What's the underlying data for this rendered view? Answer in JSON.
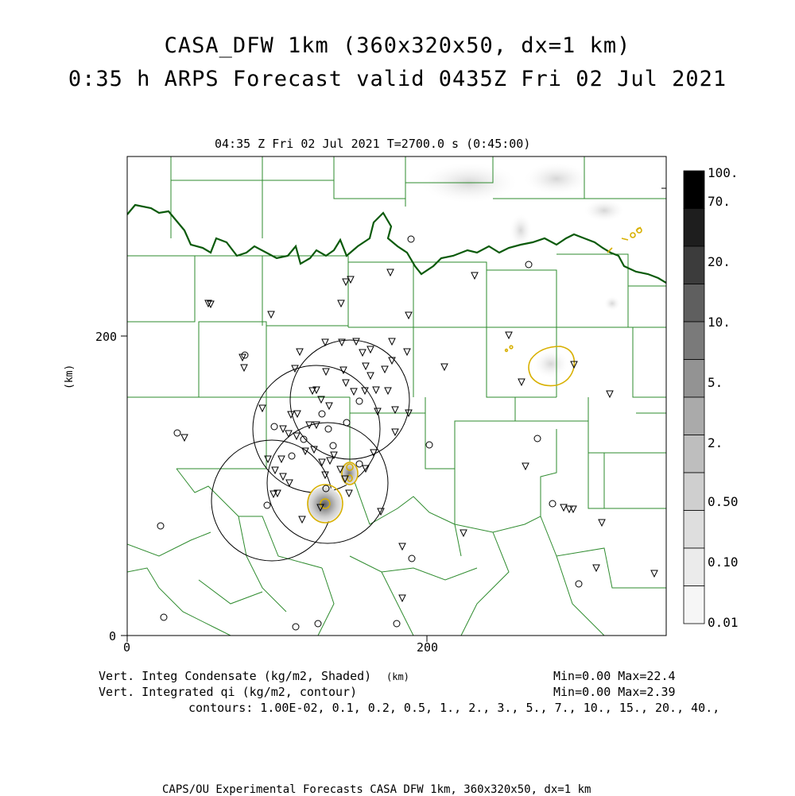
{
  "header": {
    "title_line1": "CASA_DFW 1km (360x320x50, dx=1 km)",
    "title_line2": "0:35 h ARPS Forecast valid 0435Z Fri 02 Jul 2021",
    "plot_subtitle": "04:35 Z Fri 02 Jul 2021     T=2700.0 s (0:45:00)"
  },
  "axes": {
    "y_label": "(km)",
    "x_unit_label": "(km)",
    "y_ticks": [
      "200",
      "0"
    ],
    "x_ticks": [
      "0",
      "200"
    ]
  },
  "colorbar": {
    "labels": [
      "100.",
      "70.",
      "20.",
      "10.",
      "5.",
      "2.",
      "0.50",
      "0.10",
      "0.01"
    ],
    "colors": [
      "#000000",
      "#1e1e1e",
      "#3c3c3c",
      "#5f5f5f",
      "#7a7a7a",
      "#939393",
      "#aaaaaa",
      "#bebebe",
      "#cfcfcf",
      "#dedede",
      "#ebebeb",
      "#f6f6f6"
    ]
  },
  "footer": {
    "field1": "Vert. Integ Condensate (kg/m2, Shaded)",
    "field1_stats": "Min=0.00 Max=22.4",
    "field2": "Vert. Integrated qi (kg/m2, contour)",
    "field2_stats": "Min=0.00 Max=2.39",
    "contours": "contours: 1.00E-02, 0.1, 0.2, 0.5, 1., 2., 3., 5., 7., 10., 15., 20., 40.,",
    "credit": "CAPS/OU Experimental Forecasts  CASA DFW 1km, 360x320x50, dx=1 km"
  },
  "colors": {
    "county_lines": "#2e8b2e",
    "state_border": "#0a5a0a",
    "ice_contour": "#d8b000",
    "radar_rings": "#000000"
  }
}
